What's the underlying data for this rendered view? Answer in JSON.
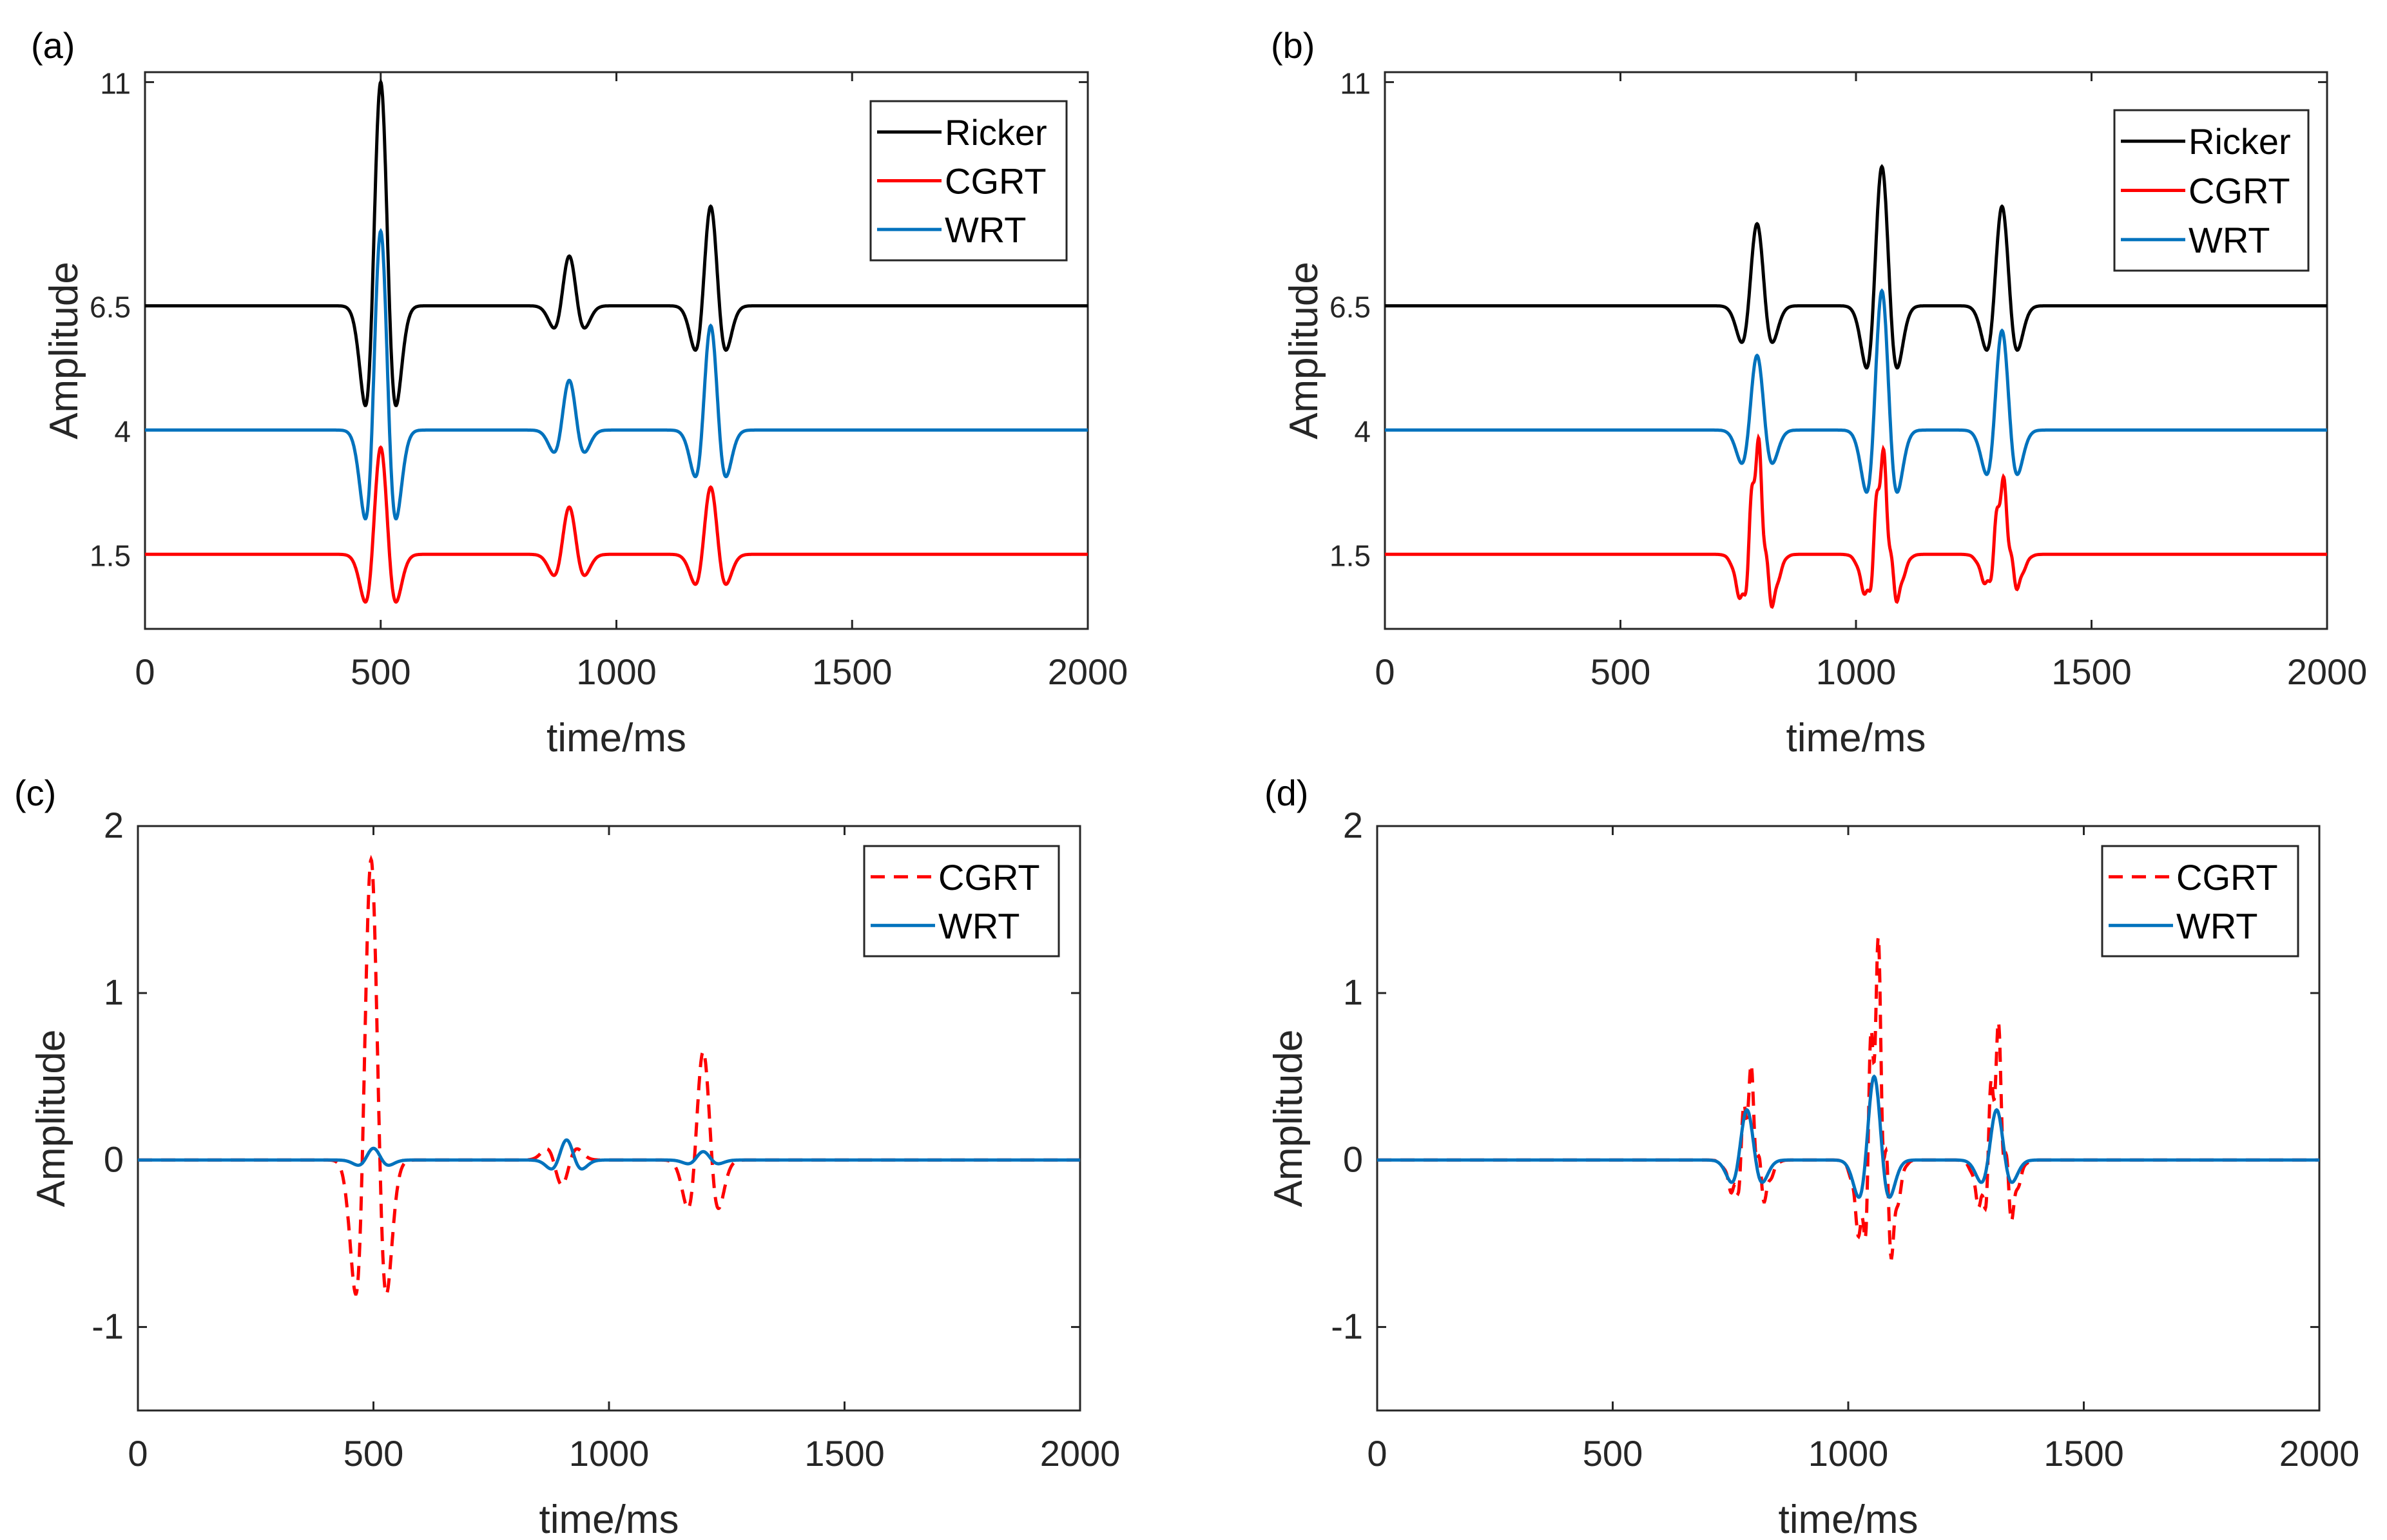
{
  "chart_data": [
    {
      "panel_label": "(a)",
      "type": "line",
      "xlabel": "time/ms",
      "ylabel": "Amplitude",
      "xlim": [
        0,
        2000
      ],
      "ylim": [
        0,
        11.2
      ],
      "xticks": [
        0,
        500,
        1000,
        1500,
        2000
      ],
      "yticks": [
        1.5,
        4,
        6.5,
        11
      ],
      "ytick_labels": [
        "1.5",
        "4",
        "6.5",
        "11"
      ],
      "legend": "top-right",
      "series": [
        {
          "name": "Ricker",
          "color": "#000000",
          "style": "solid",
          "offset": 6.5,
          "events": [
            {
              "t": 500,
              "amp": 4.5
            },
            {
              "t": 900,
              "amp": 1.0
            },
            {
              "t": 1200,
              "amp": 2.0
            }
          ]
        },
        {
          "name": "CGRT",
          "color": "#ff0000",
          "style": "solid",
          "offset": 1.5,
          "events": [
            {
              "t": 500,
              "amp": 2.15
            },
            {
              "t": 900,
              "amp": 0.95
            },
            {
              "t": 1200,
              "amp": 1.35
            }
          ]
        },
        {
          "name": "WRT",
          "color": "#0072BD",
          "style": "solid",
          "offset": 4,
          "events": [
            {
              "t": 500,
              "amp": 4.0
            },
            {
              "t": 900,
              "amp": 1.0
            },
            {
              "t": 1200,
              "amp": 2.1
            }
          ]
        }
      ]
    },
    {
      "panel_label": "(b)",
      "type": "line",
      "xlabel": "time/ms",
      "ylabel": "Amplitude",
      "xlim": [
        0,
        2000
      ],
      "ylim": [
        0,
        11.2
      ],
      "xticks": [
        0,
        500,
        1000,
        1500,
        2000
      ],
      "yticks": [
        1.5,
        4,
        6.5,
        11
      ],
      "ytick_labels": [
        "1.5",
        "4",
        "6.5",
        "11"
      ],
      "legend": "top-right",
      "series": [
        {
          "name": "Ricker",
          "color": "#000000",
          "style": "solid",
          "offset": 6.5,
          "events": [
            {
              "t": 790,
              "amp": 1.65
            },
            {
              "t": 1055,
              "amp": 2.8
            },
            {
              "t": 1310,
              "amp": 2.0
            }
          ]
        },
        {
          "name": "CGRT",
          "color": "#ff0000",
          "style": "solid",
          "offset": 1.5,
          "ripple": 0.18,
          "events": [
            {
              "t": 790,
              "amp": 2.1
            },
            {
              "t": 1055,
              "amp": 1.9
            },
            {
              "t": 1310,
              "amp": 1.4
            }
          ]
        },
        {
          "name": "WRT",
          "color": "#0072BD",
          "style": "solid",
          "offset": 4,
          "events": [
            {
              "t": 790,
              "amp": 1.5
            },
            {
              "t": 1055,
              "amp": 2.8
            },
            {
              "t": 1310,
              "amp": 2.0
            }
          ]
        }
      ]
    },
    {
      "panel_label": "(c)",
      "type": "line",
      "xlabel": "time/ms",
      "ylabel": "Amplitude",
      "xlim": [
        0,
        2000
      ],
      "ylim": [
        -1.5,
        2
      ],
      "xticks": [
        0,
        500,
        1000,
        1500,
        2000
      ],
      "yticks": [
        -1,
        0,
        1,
        2
      ],
      "ytick_labels": [
        "-1",
        "0",
        "1",
        "2"
      ],
      "legend": "top-right",
      "series": [
        {
          "name": "CGRT",
          "color": "#ff0000",
          "style": "dashed",
          "offset": 0,
          "width": 1.5,
          "events": [
            {
              "t": 495,
              "amp": 1.8
            },
            {
              "t": 900,
              "amp": -0.15
            },
            {
              "t": 1200,
              "amp": 0.65
            }
          ]
        },
        {
          "name": "WRT",
          "color": "#0072BD",
          "style": "solid",
          "offset": 0,
          "width": 0.6,
          "events": [
            {
              "t": 500,
              "amp": 0.07
            },
            {
              "t": 910,
              "amp": 0.12
            },
            {
              "t": 1200,
              "amp": 0.05
            }
          ]
        }
      ]
    },
    {
      "panel_label": "(d)",
      "type": "line",
      "xlabel": "time/ms",
      "ylabel": "Amplitude",
      "xlim": [
        0,
        2000
      ],
      "ylim": [
        -1.5,
        2
      ],
      "xticks": [
        0,
        500,
        1000,
        1500,
        2000
      ],
      "yticks": [
        -1,
        0,
        1,
        2
      ],
      "ytick_labels": [
        "-1",
        "0",
        "1",
        "2"
      ],
      "legend": "top-right",
      "series": [
        {
          "name": "CGRT",
          "color": "#ff0000",
          "style": "dashed",
          "offset": 0,
          "ripple": 0.35,
          "events": [
            {
              "t": 790,
              "amp": 0.45
            },
            {
              "t": 1060,
              "amp": 1.05
            },
            {
              "t": 1315,
              "amp": 0.65
            }
          ]
        },
        {
          "name": "WRT",
          "color": "#0072BD",
          "style": "solid",
          "offset": 0,
          "events": [
            {
              "t": 785,
              "amp": 0.3
            },
            {
              "t": 1055,
              "amp": 0.5
            },
            {
              "t": 1315,
              "amp": 0.3
            }
          ]
        }
      ]
    }
  ]
}
